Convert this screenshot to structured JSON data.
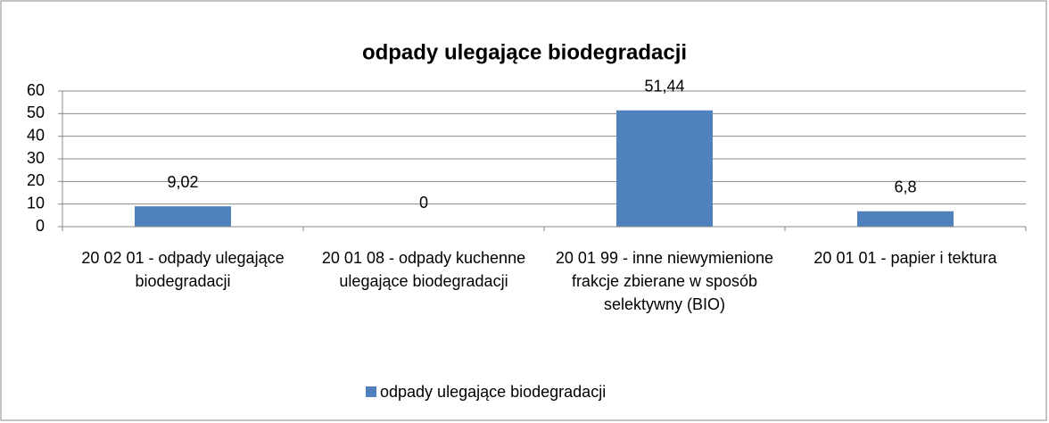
{
  "chart_data": {
    "type": "bar",
    "title": "odpady ulegające biodegradacji",
    "categories": [
      "20 02 01 - odpady ulegające biodegradacji",
      "20 01 08 - odpady kuchenne ulegające biodegradacji",
      "20 01 99 - inne niewymienione frakcje zbierane w sposób selektywny (BIO)",
      "20 01 01 - papier i tektura"
    ],
    "series": [
      {
        "name": "odpady ulegające biodegradacji",
        "color": "#4f81bd",
        "values": [
          9.02,
          0,
          51.44,
          6.8
        ],
        "value_labels": [
          "9,02",
          "0",
          "51,44",
          "6,8"
        ]
      }
    ],
    "ylim": [
      0,
      60
    ],
    "yticks": [
      0,
      10,
      20,
      30,
      40,
      50,
      60
    ],
    "grid": true,
    "legend": "bottom"
  }
}
